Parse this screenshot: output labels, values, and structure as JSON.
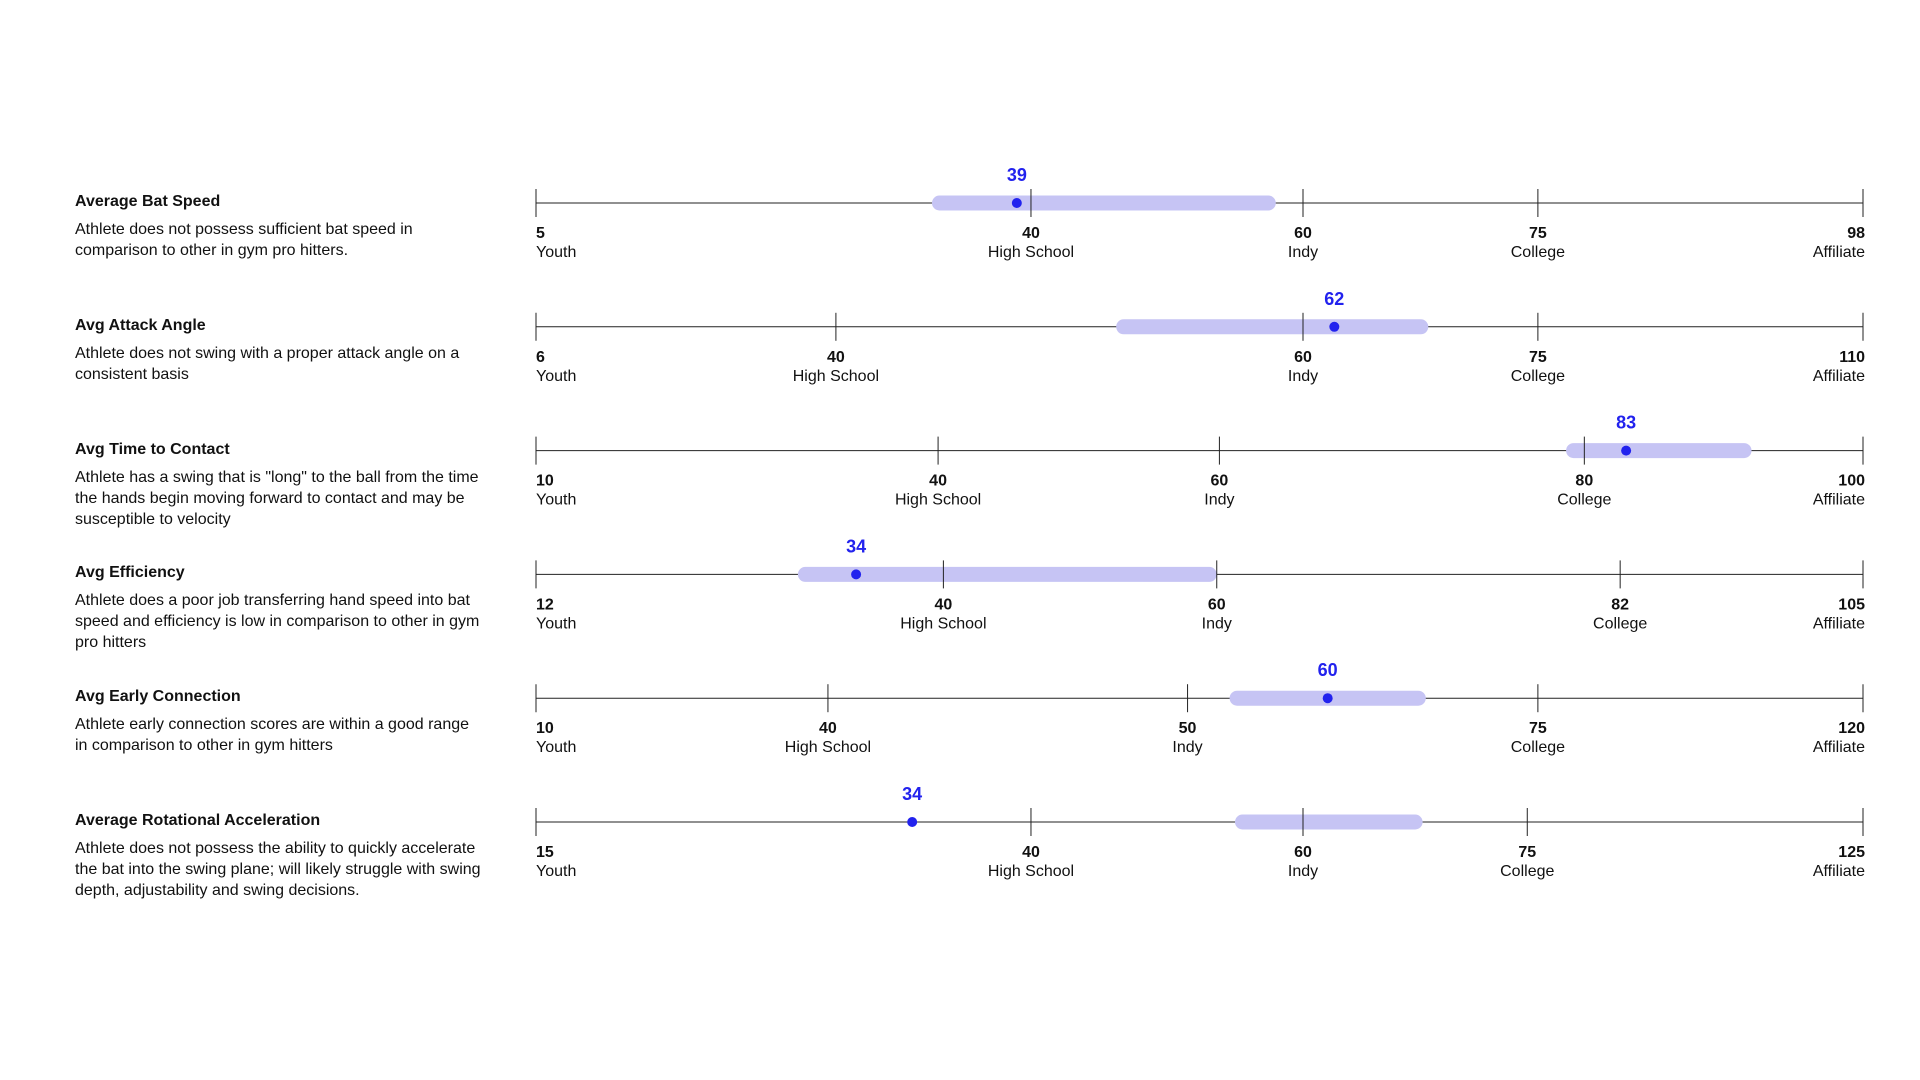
{
  "metrics": [
    {
      "title": "Average Bat Speed",
      "description": "Athlete does not possess sufficient bat speed in comparison to other in gym pro hitters.",
      "value": 39,
      "range": [
        33,
        58
      ],
      "ticks": [
        {
          "value": 5,
          "label": "Youth"
        },
        {
          "value": 40,
          "label": "High School"
        },
        {
          "value": 60,
          "label": "Indy"
        },
        {
          "value": 75,
          "label": "College"
        },
        {
          "value": 98,
          "label": "Affiliate"
        }
      ]
    },
    {
      "title": "Avg Attack Angle",
      "description": "Athlete does not swing with a proper attack angle on a consistent basis",
      "value": 62,
      "range": [
        52,
        68
      ],
      "ticks": [
        {
          "value": 6,
          "label": "Youth"
        },
        {
          "value": 40,
          "label": "High School"
        },
        {
          "value": 60,
          "label": "Indy"
        },
        {
          "value": 75,
          "label": "College"
        },
        {
          "value": 110,
          "label": "Affiliate"
        }
      ]
    },
    {
      "title": "Avg Time to Contact",
      "description": "Athlete has a swing that is \"long\" to the ball from the time the hands begin moving forward to contact and may be susceptible to velocity",
      "value": 83,
      "range": [
        79,
        92
      ],
      "ticks": [
        {
          "value": 10,
          "label": "Youth"
        },
        {
          "value": 40,
          "label": "High School"
        },
        {
          "value": 60,
          "label": "Indy"
        },
        {
          "value": 80,
          "label": "College"
        },
        {
          "value": 100,
          "label": "Affiliate"
        }
      ]
    },
    {
      "title": "Avg Efficiency",
      "description": "Athlete does a poor job transferring hand speed into bat speed and efficiency is low in comparison to other in gym pro hitters",
      "value": 34,
      "range": [
        30,
        60
      ],
      "ticks": [
        {
          "value": 12,
          "label": "Youth"
        },
        {
          "value": 40,
          "label": "High School"
        },
        {
          "value": 60,
          "label": "Indy"
        },
        {
          "value": 82,
          "label": "College"
        },
        {
          "value": 105,
          "label": "Affiliate"
        }
      ]
    },
    {
      "title": "Avg Early Connection",
      "description": "Athlete early connection scores are within a good range in comparison to other in gym hitters",
      "value": 60,
      "range": [
        53,
        67
      ],
      "ticks": [
        {
          "value": 10,
          "label": "Youth"
        },
        {
          "value": 40,
          "label": "High School"
        },
        {
          "value": 50,
          "label": "Indy"
        },
        {
          "value": 75,
          "label": "College"
        },
        {
          "value": 120,
          "label": "Affiliate"
        }
      ]
    },
    {
      "title": "Average Rotational Acceleration",
      "description": "Athlete does not possess the ability to quickly accelerate the bat into the swing plane; will likely struggle with swing depth, adjustability and swing decisions.",
      "value": 34,
      "range": [
        55,
        68
      ],
      "ticks": [
        {
          "value": 15,
          "label": "Youth"
        },
        {
          "value": 40,
          "label": "High School"
        },
        {
          "value": 60,
          "label": "Indy"
        },
        {
          "value": 75,
          "label": "College"
        },
        {
          "value": 125,
          "label": "Affiliate"
        }
      ]
    }
  ]
}
